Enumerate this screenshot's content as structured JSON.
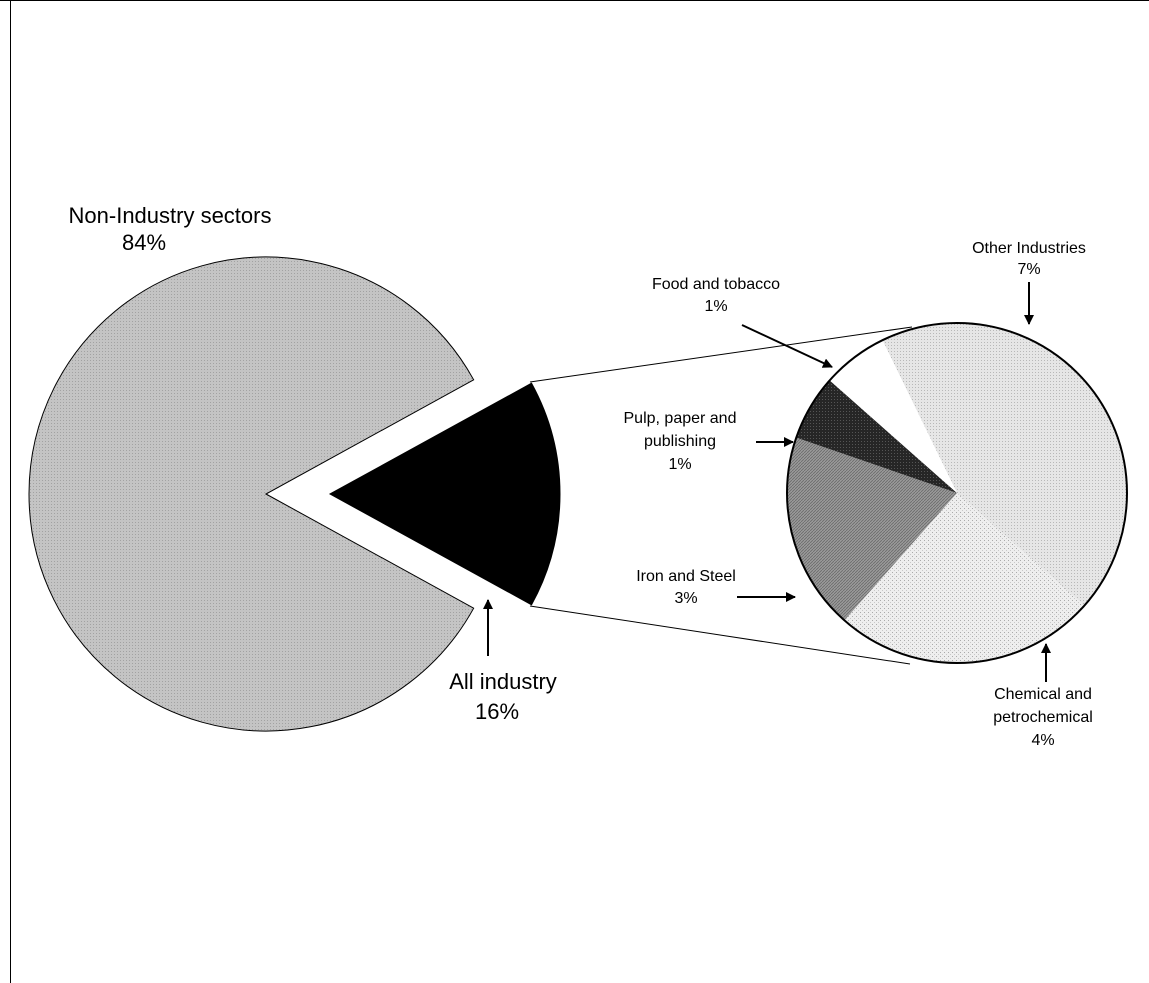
{
  "chart_data": [
    {
      "type": "pie",
      "slices": [
        {
          "label": "Non-Industry sectors",
          "value_label": "84%",
          "value": 84,
          "color": "#bdbdbd"
        },
        {
          "label": "All industry",
          "value_label": "16%",
          "value": 16,
          "color": "#000000"
        }
      ]
    },
    {
      "type": "pie",
      "slices": [
        {
          "label": "Other Industries",
          "value_label": "7%",
          "value": 7,
          "color": "#dedede"
        },
        {
          "label": "Chemical and petrochemical",
          "value_label": "4%",
          "value": 4,
          "color": "#e8e8e8"
        },
        {
          "label": "Iron and Steel",
          "value_label": "3%",
          "value": 3,
          "color": "#a8a8a8"
        },
        {
          "label": "Pulp, paper and publishing",
          "value_label": "1%",
          "value": 1,
          "color": "#2b2b2b"
        },
        {
          "label": "Food and tobacco",
          "value_label": "1%",
          "value": 1,
          "color": "#ffffff"
        }
      ]
    }
  ]
}
